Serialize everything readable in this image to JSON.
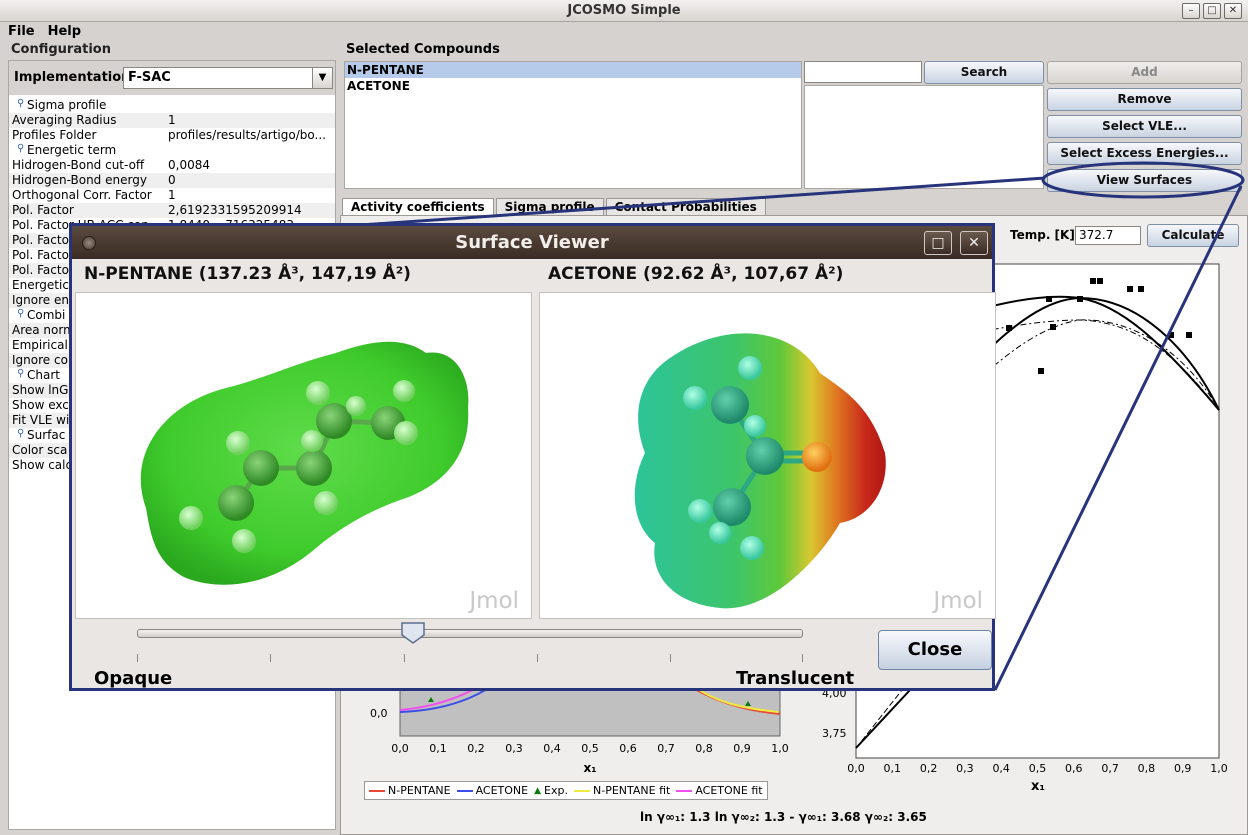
{
  "window": {
    "title": "JCOSMO Simple"
  },
  "menu": [
    "File",
    "Help"
  ],
  "config": {
    "title": "Configuration",
    "implementation_label": "Implementation",
    "implementation_value": "F-SAC",
    "rows": [
      {
        "cat": true,
        "k": "Sigma profile"
      },
      {
        "k": "Averaging Radius",
        "v": "1"
      },
      {
        "k": "Profiles Folder",
        "v": "profiles/results/artigo/bo..."
      },
      {
        "cat": true,
        "k": "Energetic term"
      },
      {
        "k": "Hidrogen-Bond cut-off",
        "v": "0,0084"
      },
      {
        "k": "Hidrogen-Bond energy",
        "v": "0"
      },
      {
        "k": "Orthogonal Corr. Factor",
        "v": "1"
      },
      {
        "k": "Pol. Factor",
        "v": "2,6192331595209914"
      },
      {
        "k": "Pol. Factor HB ACC con",
        "v": "1,8440... 716325483"
      },
      {
        "k": "Pol. Facto",
        "v": ""
      },
      {
        "k": "Pol. Facto",
        "v": ""
      },
      {
        "k": "Pol. Facto",
        "v": ""
      },
      {
        "k": "Energetic",
        "v": ""
      },
      {
        "k": "Ignore en",
        "v": ""
      },
      {
        "cat": true,
        "k": "Combi"
      },
      {
        "k": "Area norm",
        "v": ""
      },
      {
        "k": "Empirical",
        "v": ""
      },
      {
        "k": "Ignore co",
        "v": ""
      },
      {
        "cat": true,
        "k": "Chart"
      },
      {
        "k": "Show lnGa",
        "v": ""
      },
      {
        "k": "Show exc",
        "v": ""
      },
      {
        "k": "Fit VLE wi",
        "v": ""
      },
      {
        "cat": true,
        "k": "Surfac"
      },
      {
        "k": "Color sca",
        "v": ""
      },
      {
        "k": "Show calc",
        "v": ""
      }
    ]
  },
  "compounds": {
    "title": "Selected Compounds",
    "items": [
      "N-PENTANE",
      "ACETONE"
    ],
    "search_value": "",
    "buttons": {
      "search": "Search",
      "add": "Add",
      "remove": "Remove",
      "select_vle": "Select VLE...",
      "select_excess": "Select Excess Energies...",
      "view_surfaces": "View Surfaces"
    }
  },
  "tabs": [
    "Activity coefficients",
    "Sigma profile",
    "Contact Probabilities"
  ],
  "calc": {
    "temp_label": "Temp. [K]",
    "temp_value": "372.7",
    "button": "Calculate"
  },
  "left_chart": {
    "y_label_ticks": [
      "0,0"
    ],
    "x_ticks": [
      "0,0",
      "0,1",
      "0,2",
      "0,3",
      "0,4",
      "0,5",
      "0,6",
      "0,7",
      "0,8",
      "0,9",
      "1,0"
    ],
    "xlabel": "x₁",
    "legend": [
      {
        "name": "N-PENTANE",
        "color": "#e8473a"
      },
      {
        "name": "ACETONE",
        "color": "#3b4ee8"
      },
      {
        "name": "Exp.",
        "color": "#0a7a0a"
      },
      {
        "name": "N-PENTANE fit",
        "color": "#f0ea40"
      },
      {
        "name": "ACETONE fit",
        "color": "#f050f0"
      }
    ]
  },
  "right_chart": {
    "y_ticks": [
      "4,00",
      "3,75"
    ],
    "x_ticks": [
      "0,0",
      "0,1",
      "0,2",
      "0,3",
      "0,4",
      "0,5",
      "0,6",
      "0,7",
      "0,8",
      "0,9",
      "1,0"
    ],
    "xlabel": "x₁"
  },
  "status": {
    "g1_label": "ln γ∞₁:",
    "g1": "1.3",
    "g2_label": "ln γ∞₂:",
    "g2": "1.3",
    "sep": "-",
    "gb1_label": "γ∞₁:",
    "gb1": "3.68",
    "gb2_label": "γ∞₂:",
    "gb2": "3.65"
  },
  "viewer": {
    "title": "Surface Viewer",
    "mol1": "N-PENTANE (137.23 Å³, 147,19 Å²)",
    "mol2": "ACETONE (92.62 Å³, 107,67 Å²)",
    "jmol": "Jmol",
    "opaque": "Opaque",
    "translucent": "Translucent",
    "close": "Close",
    "slider_fraction": 0.4
  }
}
